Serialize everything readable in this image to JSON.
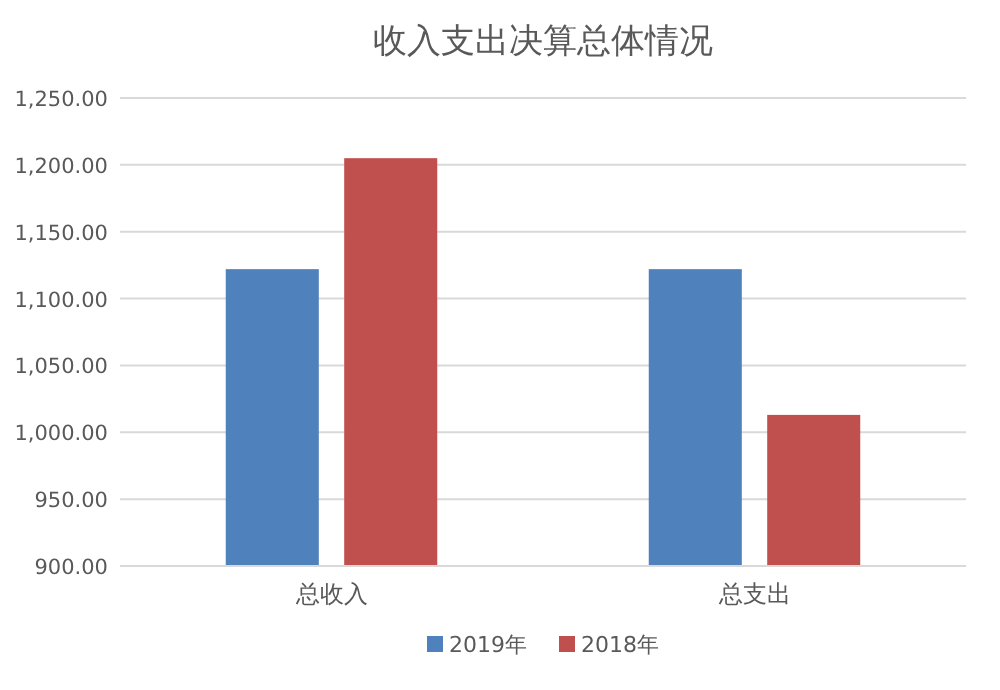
{
  "chart_data": {
    "type": "bar",
    "title": "收入支出决算总体情况",
    "categories": [
      "总收入",
      "总支出"
    ],
    "series": [
      {
        "name": "2019年",
        "color": "#4f81bd",
        "values": [
          1122,
          1122
        ]
      },
      {
        "name": "2018年",
        "color": "#c0504d",
        "values": [
          1205,
          1013
        ]
      }
    ],
    "ylim": [
      900,
      1250
    ],
    "yticks": [
      {
        "value": 900,
        "label": "900.00"
      },
      {
        "value": 950,
        "label": "950.00"
      },
      {
        "value": 1000,
        "label": "1,000.00"
      },
      {
        "value": 1050,
        "label": "1,050.00"
      },
      {
        "value": 1100,
        "label": "1,100.00"
      },
      {
        "value": 1150,
        "label": "1,150.00"
      },
      {
        "value": 1200,
        "label": "1,200.00"
      },
      {
        "value": 1250,
        "label": "1,250.00"
      }
    ],
    "grid": "y",
    "legend": "bottom"
  }
}
